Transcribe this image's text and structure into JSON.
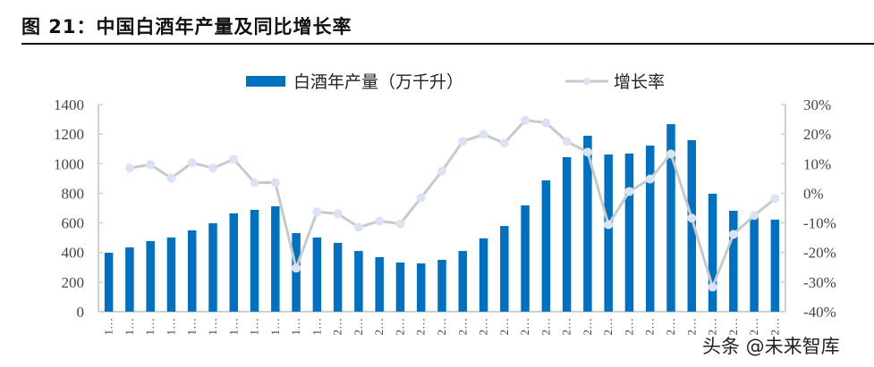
{
  "title": "图 21：中国白酒年产量及同比增长率",
  "watermark": "头条 @未来智库",
  "colors": {
    "bar": "#0070C0",
    "line": "#C9C9C9",
    "marker": "#DAE3F3",
    "axis": "#D0D0D0"
  },
  "chart_data": {
    "type": "bar+line",
    "title": "中国白酒年产量及同比增长率",
    "categories": [
      "1…",
      "1…",
      "1…",
      "1…",
      "1…",
      "1…",
      "1…",
      "1…",
      "1…",
      "1…",
      "1…",
      "2…",
      "2…",
      "2…",
      "2…",
      "2…",
      "2…",
      "2…",
      "2…",
      "2…",
      "2…",
      "2…",
      "2…",
      "2…",
      "2…",
      "2…",
      "2…",
      "2…",
      "2…",
      "2…",
      "2…",
      "2…",
      "2…"
    ],
    "series": [
      {
        "name": "白酒年产量（万千升）",
        "type": "bar",
        "axis": "left",
        "values": [
          398,
          434,
          477,
          501,
          549,
          597,
          664,
          688,
          712,
          531,
          501,
          465,
          410,
          368,
          332,
          326,
          350,
          410,
          495,
          579,
          718,
          887,
          1044,
          1189,
          1062,
          1068,
          1122,
          1267,
          1159,
          797,
          682,
          640,
          622
        ]
      },
      {
        "name": "增长率",
        "type": "line",
        "axis": "right",
        "values": [
          null,
          8.5,
          9.7,
          5.1,
          10.3,
          8.5,
          11.5,
          3.6,
          3.6,
          -25.3,
          -6.3,
          -6.9,
          -11.5,
          -9.4,
          -10.3,
          -1.5,
          7.5,
          17.5,
          19.9,
          16.9,
          24.7,
          23.8,
          17.5,
          13.9,
          -10.6,
          0.6,
          4.8,
          13.3,
          -8.4,
          -31.7,
          -13.9,
          -7.5,
          -1.8
        ]
      }
    ],
    "yleft": {
      "ticks": [
        "0",
        "200",
        "400",
        "600",
        "800",
        "1000",
        "1200",
        "1400"
      ],
      "range": [
        0,
        1400
      ]
    },
    "yright": {
      "ticks": [
        "-40%",
        "-30%",
        "-20%",
        "-10%",
        "0%",
        "10%",
        "20%",
        "30%"
      ],
      "range": [
        -40,
        30
      ]
    },
    "legend": {
      "position": "top",
      "items": [
        "白酒年产量（万千升）",
        "增长率"
      ]
    },
    "grid": false
  }
}
